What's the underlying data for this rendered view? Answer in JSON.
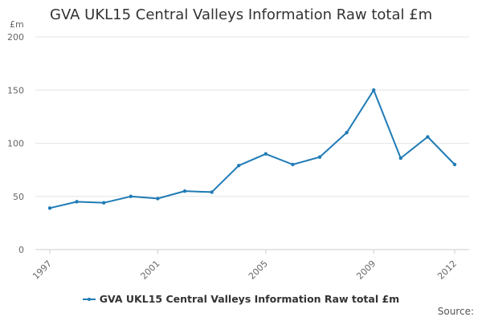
{
  "chart_data": {
    "type": "line",
    "title": "GVA UKL15 Central Valleys Information Raw total £m",
    "ylabel": "£m",
    "xlabel": "",
    "ylim": [
      0,
      200
    ],
    "yticks": [
      0,
      50,
      100,
      150,
      200
    ],
    "xlim": [
      1997,
      2012
    ],
    "xtick_labels": [
      "1997",
      "2001",
      "2005",
      "2009",
      "2012"
    ],
    "grid": true,
    "legend_position": "bottom",
    "series": [
      {
        "name": "GVA UKL15 Central Valleys Information Raw total £m",
        "color": "#1f7bb6",
        "x": [
          1997,
          1998,
          1999,
          2000,
          2001,
          2002,
          2003,
          2004,
          2005,
          2006,
          2007,
          2008,
          2009,
          2010,
          2011,
          2012
        ],
        "values": [
          39,
          45,
          44,
          50,
          48,
          55,
          54,
          79,
          90,
          80,
          87,
          110,
          150,
          86,
          106,
          80
        ]
      }
    ]
  },
  "source_label": "Source:"
}
